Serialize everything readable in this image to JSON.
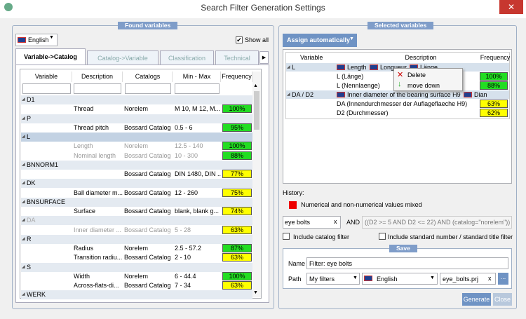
{
  "window": {
    "title": "Search Filter Generation Settings"
  },
  "left": {
    "title": "Found variables",
    "language": "English",
    "show_all": "Show all",
    "tabs": [
      "Variable->Catalog",
      "Catalog->Variable",
      "Classification",
      "Technical"
    ],
    "columns": [
      "Variable",
      "Description",
      "Catalogs",
      "Min - Max",
      "Frequency"
    ],
    "groups": [
      {
        "name": "D1",
        "rows": [
          {
            "description": "Thread",
            "catalog": "Norelem",
            "range": "M 10, M 12, M...",
            "frequency": "100%",
            "color": "#22dd22"
          }
        ]
      },
      {
        "name": "P",
        "rows": [
          {
            "description": "Thread pitch",
            "catalog": "Bossard Catalog",
            "range": "0.5 - 6",
            "frequency": "95%",
            "color": "#22dd22"
          }
        ]
      },
      {
        "name": "L",
        "selected": true,
        "rows": [
          {
            "description": "Length",
            "catalog": "Norelem",
            "range": "12.5 - 140",
            "frequency": "100%",
            "color": "#22dd22",
            "dimmed": true
          },
          {
            "description": "Nominal length",
            "catalog": "Bossard Catalog",
            "range": "10 - 300",
            "frequency": "88%",
            "color": "#22dd22",
            "dimmed": true
          }
        ]
      },
      {
        "name": "BNNORM1",
        "rows": [
          {
            "description": "",
            "catalog": "Bossard Catalog",
            "range": "DIN 1480, DIN ...",
            "frequency": "77%",
            "color": "#ffff00"
          }
        ]
      },
      {
        "name": "DK",
        "rows": [
          {
            "description": "Ball diameter m...",
            "catalog": "Bossard Catalog",
            "range": "12 - 260",
            "frequency": "75%",
            "color": "#ffff00"
          }
        ]
      },
      {
        "name": "BNSURFACE",
        "rows": [
          {
            "description": "Surface",
            "catalog": "Bossard Catalog",
            "range": "blank, blank g...",
            "frequency": "74%",
            "color": "#ffff00"
          }
        ]
      },
      {
        "name": "DA",
        "dimmed": true,
        "rows": [
          {
            "description": "Inner diameter ...",
            "catalog": "Bossard Catalog",
            "range": "5 - 28",
            "frequency": "63%",
            "color": "#ffff00",
            "dimmed": true
          }
        ]
      },
      {
        "name": "R",
        "rows": [
          {
            "description": "Radius",
            "catalog": "Norelem",
            "range": "2.5 - 57.2",
            "frequency": "87%",
            "color": "#22dd22"
          },
          {
            "description": "Transition radiu...",
            "catalog": "Bossard Catalog",
            "range": "2 - 10",
            "frequency": "63%",
            "color": "#ffff00"
          }
        ]
      },
      {
        "name": "S",
        "rows": [
          {
            "description": "Width",
            "catalog": "Norelem",
            "range": "6 - 44.4",
            "frequency": "100%",
            "color": "#22dd22"
          },
          {
            "description": "Across-flats-di...",
            "catalog": "Bossard Catalog",
            "range": "7 - 34",
            "frequency": "63%",
            "color": "#ffff00"
          }
        ]
      },
      {
        "name": "WERK",
        "rows": []
      }
    ]
  },
  "right": {
    "title": "Selected variables",
    "assign": "Assign automatically",
    "columns": [
      "Variable",
      "Description",
      "Frequency"
    ],
    "groups": [
      {
        "name": "L",
        "descriptions": [
          "Length",
          "Longueur",
          "Länge"
        ],
        "rows": [
          {
            "name": "L (Länge)",
            "frequency": "100%",
            "color": "#22dd22"
          },
          {
            "name": "L (Nennlaenge)",
            "frequency": "88%",
            "color": "#22dd22"
          }
        ]
      },
      {
        "name": "DA / D2",
        "descriptions": [
          "Inner diameter of the bearing surface H9",
          "Dian"
        ],
        "rows": [
          {
            "name": "DA (Innendurchmesser der Auflageflaeche H9)",
            "frequency": "63%",
            "color": "#ffff00"
          },
          {
            "name": "D2 (Durchmesser)",
            "frequency": "62%",
            "color": "#ffff00"
          }
        ]
      }
    ],
    "menu": [
      "Delete",
      "move down"
    ],
    "history_label": "History:",
    "history": [
      "Numerical and non-numerical values mixed"
    ],
    "search": "eye bolts",
    "clear": "x",
    "and": "AND",
    "expression": "((D2 >= 5 AND D2 <= 22) AND (catalog=\"norelem\"))",
    "include_catalog": "Include catalog filter",
    "include_standard": "Include standard number / standard title filter",
    "save": {
      "title": "Save",
      "name_label": "Name",
      "name": "Filter: eye bolts",
      "path_label": "Path",
      "path": "My filters",
      "language": "English",
      "file": "eye_bolts.prj",
      "clear": "x",
      "browse": "..."
    },
    "generate": "Generate",
    "close": "Close"
  }
}
